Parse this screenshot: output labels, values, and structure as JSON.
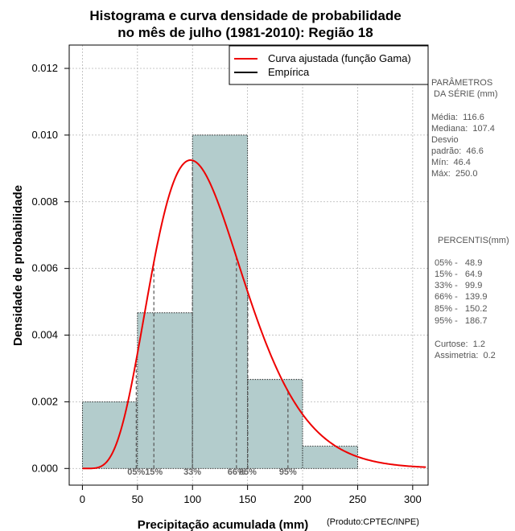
{
  "chart_data": {
    "type": "histogram",
    "title_line1": "Histograma e curva densidade de probabilidade",
    "title_line2": "no mês de julho (1981-2010): Região 18",
    "xlabel": "Precipitação acumulada (mm)",
    "ylabel": "Densidade de probabilidade",
    "credit": "(Produto:CPTEC/INPE)",
    "xlim": [
      -12,
      314
    ],
    "ylim": [
      -0.0005,
      0.0127
    ],
    "x_ticks": [
      0,
      50,
      100,
      150,
      200,
      250,
      300
    ],
    "y_ticks": [
      0.0,
      0.002,
      0.004,
      0.006,
      0.008,
      0.01,
      0.012
    ],
    "y_tick_labels": [
      "0.000",
      "0.002",
      "0.004",
      "0.006",
      "0.008",
      "0.010",
      "0.012"
    ],
    "grid": true,
    "bins": [
      {
        "from": 0,
        "to": 50,
        "density": 0.002
      },
      {
        "from": 50,
        "to": 100,
        "density": 0.00467
      },
      {
        "from": 100,
        "to": 150,
        "density": 0.01
      },
      {
        "from": 150,
        "to": 200,
        "density": 0.00267
      },
      {
        "from": 200,
        "to": 250,
        "density": 0.00067
      }
    ],
    "gamma_fit": {
      "shape": 6.35,
      "scale": 18.36
    },
    "legend": [
      {
        "label": "Curva ajustada (função Gama)",
        "color": "#ee0000"
      },
      {
        "label": "Empírica",
        "color": "#000000"
      }
    ],
    "legend_position": "top-right",
    "percentiles": [
      {
        "label": "05%",
        "value": 48.9
      },
      {
        "label": "15%",
        "value": 64.9
      },
      {
        "label": "33%",
        "value": 99.9
      },
      {
        "label": "66%",
        "value": 139.9
      },
      {
        "label": "85%",
        "value": 150.2
      },
      {
        "label": "95%",
        "value": 186.7
      }
    ],
    "colors": {
      "bar_fill": "#b3cccc",
      "curve": "#ee0000",
      "grid": "#b5b5b5",
      "percentile_line": "#555555",
      "percentile_text": "#666666"
    }
  },
  "side_panel": {
    "params_heading_1": "PARÂMETROS",
    "params_heading_2": " DA SÉRIE (mm)",
    "media": "Média:  116.6",
    "mediana": "Mediana:  107.4",
    "desvio_1": "Desvio",
    "desvio_2": "padrão:  46.6",
    "min": "Mín:  46.4",
    "max": "Máx:  250.0",
    "percentis_heading": "PERCENTIS(mm)",
    "p05": "05% -   48.9",
    "p15": "15% -   64.9",
    "p33": "33% -   99.9",
    "p66": "66% -   139.9",
    "p85": "85% -   150.2",
    "p95": "95% -   186.7",
    "curtose": "Curtose:  1.2",
    "assimetria": "Assimetria:  0.2"
  }
}
